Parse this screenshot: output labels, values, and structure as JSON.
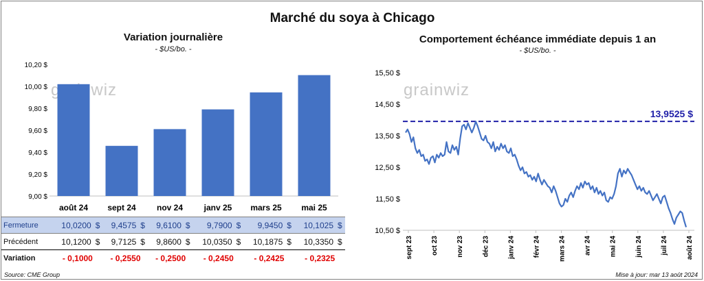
{
  "title": "Marché du soya à Chicago",
  "left_panel": {
    "title": "Variation  journalière",
    "unit": "- $US/bo. -",
    "watermark": "grainwiz"
  },
  "right_panel": {
    "title": "Comportement  échéance immédiate depuis 1 an",
    "unit": "- $US/bo. -",
    "watermark": "grainwiz",
    "reference_label": "13,9525 $"
  },
  "table": {
    "rows": [
      {
        "label": "Fermeture",
        "values": [
          "10,0200",
          "9,4575",
          "9,6100",
          "9,7900",
          "9,9450",
          "10,1025"
        ],
        "currency": "$"
      },
      {
        "label": "Précédent",
        "values": [
          "10,1200",
          "9,7125",
          "9,8600",
          "10,0350",
          "10,1875",
          "10,3350"
        ],
        "currency": "$"
      },
      {
        "label": "Variation",
        "values": [
          "- 0,1000",
          "- 0,2550",
          "- 0,2500",
          "- 0,2450",
          "- 0,2425",
          "- 0,2325"
        ]
      }
    ]
  },
  "footer": {
    "source": "Source: CME Group",
    "updated": "Mise à jour: mar 13 août 2024"
  },
  "chart_data": [
    {
      "type": "bar",
      "categories": [
        "août 24",
        "sept 24",
        "nov 24",
        "janv 25",
        "mars 25",
        "mai 25"
      ],
      "values": [
        10.02,
        9.4575,
        9.61,
        9.79,
        9.945,
        10.1025
      ],
      "yticks": [
        "9,00 $",
        "9,20 $",
        "9,40 $",
        "9,60 $",
        "9,80 $",
        "10,00 $",
        "10,20 $"
      ],
      "ylim": [
        9.0,
        10.2
      ],
      "color": "#4472c4"
    },
    {
      "type": "line",
      "xticks": [
        "sept 23",
        "oct 23",
        "nov 23",
        "déc 23",
        "janv 24",
        "févr 24",
        "mars 24",
        "avr 24",
        "mai 24",
        "juin 24",
        "juil 24",
        "août 24"
      ],
      "yticks": [
        "10,50 $",
        "11,50 $",
        "12,50 $",
        "13,50 $",
        "14,50 $",
        "15,50 $"
      ],
      "ylim": [
        10.5,
        15.5
      ],
      "reference_value": 13.9525,
      "color": "#4472c4",
      "reference_color": "#1f1fa8",
      "values": [
        13.6,
        13.7,
        13.55,
        13.3,
        13.45,
        13.1,
        12.95,
        13.05,
        12.85,
        12.9,
        12.7,
        12.75,
        12.6,
        12.8,
        12.85,
        12.65,
        12.9,
        12.8,
        12.95,
        12.85,
        12.9,
        13.3,
        13.0,
        12.95,
        13.2,
        13.05,
        13.15,
        12.9,
        13.4,
        13.8,
        13.85,
        13.7,
        13.9,
        13.75,
        13.6,
        13.75,
        13.95,
        13.8,
        13.6,
        13.4,
        13.35,
        13.5,
        13.3,
        13.25,
        13.1,
        13.3,
        13.0,
        13.15,
        13.05,
        13.25,
        13.1,
        13.2,
        13.0,
        12.95,
        13.1,
        12.85,
        12.9,
        12.75,
        12.55,
        12.4,
        12.5,
        12.3,
        12.35,
        12.2,
        12.25,
        12.1,
        12.2,
        12.05,
        12.3,
        12.1,
        11.95,
        12.1,
        12.0,
        11.9,
        11.85,
        11.7,
        11.9,
        11.75,
        11.55,
        11.35,
        11.25,
        11.3,
        11.5,
        11.4,
        11.6,
        11.7,
        11.55,
        11.75,
        11.9,
        11.8,
        12.0,
        11.85,
        12.05,
        11.95,
        12.0,
        11.8,
        11.9,
        11.7,
        11.85,
        11.65,
        11.75,
        11.6,
        11.7,
        11.45,
        11.4,
        11.55,
        11.5,
        11.65,
        11.9,
        12.3,
        12.45,
        12.2,
        12.4,
        12.3,
        12.45,
        12.35,
        12.25,
        12.1,
        11.95,
        11.8,
        11.9,
        11.75,
        11.85,
        11.7,
        11.65,
        11.75,
        11.6,
        11.45,
        11.55,
        11.65,
        11.5,
        11.35,
        11.55,
        11.6,
        11.4,
        11.2,
        11.05,
        10.85,
        10.7,
        10.9,
        11.0,
        11.1,
        11.05,
        10.8,
        10.6
      ]
    }
  ]
}
